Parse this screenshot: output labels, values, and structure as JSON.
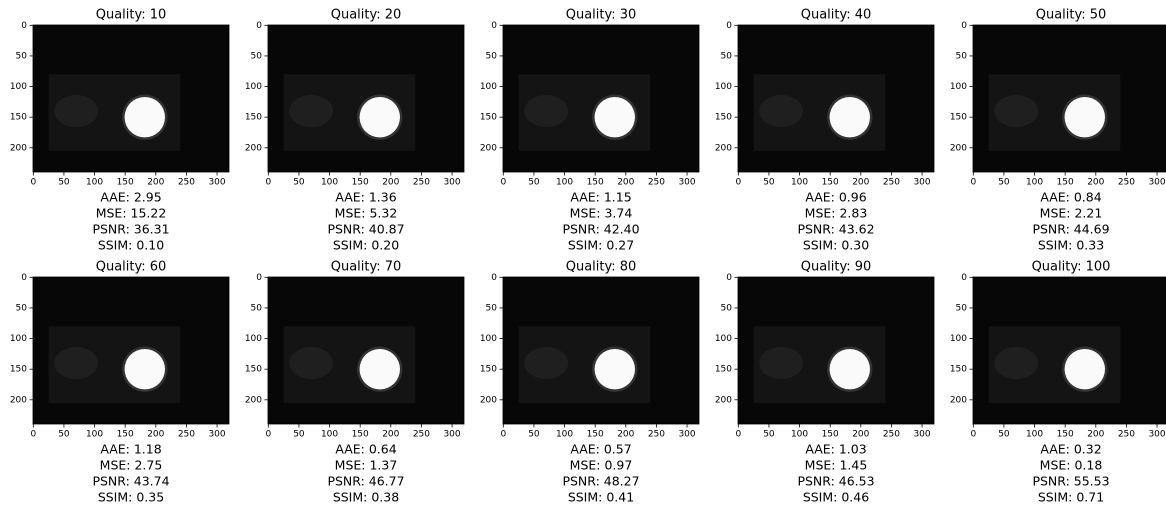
{
  "panels": [
    {
      "title": "Quality: 10",
      "metrics": [
        "AAE: 2.95",
        "MSE: 15.22",
        "PSNR: 36.31",
        "SSIM: 0.10"
      ]
    },
    {
      "title": "Quality: 20",
      "metrics": [
        "AAE: 1.36",
        "MSE: 5.32",
        "PSNR: 40.87",
        "SSIM: 0.20"
      ]
    },
    {
      "title": "Quality: 30",
      "metrics": [
        "AAE: 1.15",
        "MSE: 3.74",
        "PSNR: 42.40",
        "SSIM: 0.27"
      ]
    },
    {
      "title": "Quality: 40",
      "metrics": [
        "AAE: 0.96",
        "MSE: 2.83",
        "PSNR: 43.62",
        "SSIM: 0.30"
      ]
    },
    {
      "title": "Quality: 50",
      "metrics": [
        "AAE: 0.84",
        "MSE: 2.21",
        "PSNR: 44.69",
        "SSIM: 0.33"
      ]
    },
    {
      "title": "Quality: 60",
      "metrics": [
        "AAE: 1.18",
        "MSE: 2.75",
        "PSNR: 43.74",
        "SSIM: 0.35"
      ]
    },
    {
      "title": "Quality: 70",
      "metrics": [
        "AAE: 0.64",
        "MSE: 1.37",
        "PSNR: 46.77",
        "SSIM: 0.38"
      ]
    },
    {
      "title": "Quality: 80",
      "metrics": [
        "AAE: 0.57",
        "MSE: 0.97",
        "PSNR: 48.27",
        "SSIM: 0.41"
      ]
    },
    {
      "title": "Quality: 90",
      "metrics": [
        "AAE: 1.03",
        "MSE: 1.45",
        "PSNR: 46.53",
        "SSIM: 0.46"
      ]
    },
    {
      "title": "Quality: 100",
      "metrics": [
        "AAE: 0.32",
        "MSE: 0.18",
        "PSNR: 55.53",
        "SSIM: 0.71"
      ]
    }
  ],
  "xlim": [
    -0.5,
    319.5
  ],
  "ylim": [
    239.5,
    -0.5
  ],
  "xticks": [
    0,
    50,
    100,
    150,
    200,
    250,
    300
  ],
  "yticks": [
    0,
    50,
    100,
    150,
    200
  ]
}
